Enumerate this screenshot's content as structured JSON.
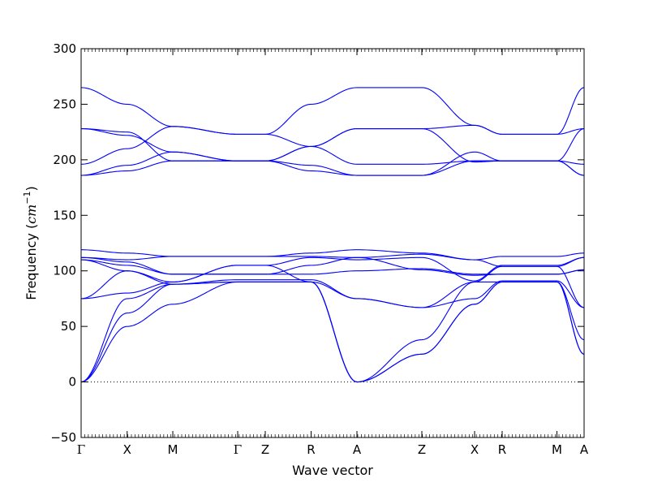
{
  "chart_data": {
    "type": "line",
    "xlabel": "Wave vector",
    "ylabel_text": "Frequency (",
    "ylabel_unit": "cm",
    "ylabel_exponent": "−1",
    "ylabel_close": ")",
    "ylim": [
      -50,
      300
    ],
    "yticks": [
      -50,
      0,
      50,
      100,
      150,
      200,
      250,
      300
    ],
    "ytick_labels": [
      "−50",
      "0",
      "50",
      "100",
      "150",
      "200",
      "250",
      "300"
    ],
    "xlim": [
      0,
      1
    ],
    "xticks": [
      {
        "label": "Γ",
        "x": 0.0
      },
      {
        "label": "X",
        "x": 0.0915
      },
      {
        "label": "M",
        "x": 0.1823
      },
      {
        "label": "Γ",
        "x": 0.3113
      },
      {
        "label": "Z",
        "x": 0.3661
      },
      {
        "label": "R",
        "x": 0.4573
      },
      {
        "label": "A",
        "x": 0.5484
      },
      {
        "label": "Z",
        "x": 0.6774
      },
      {
        "label": "X",
        "x": 0.7823
      },
      {
        "label": "R",
        "x": 0.8371
      },
      {
        "label": "M",
        "x": 0.946
      },
      {
        "label": "A",
        "x": 1.0
      }
    ],
    "zero_line": true,
    "line_color": "#0000ff",
    "series": [
      {
        "values": [
          0,
          62,
          88,
          90,
          90,
          90,
          0,
          25,
          70,
          90,
          90,
          25,
          85,
          90,
          90,
          90
        ]
      },
      {
        "values": [
          0,
          50,
          70,
          90,
          90,
          90,
          0,
          25,
          70,
          90,
          90,
          25,
          70,
          70,
          90,
          90
        ]
      },
      {
        "values": [
          0,
          75,
          88,
          90,
          90,
          90,
          0,
          38,
          90,
          90,
          90,
          38,
          88,
          90,
          90,
          90
        ]
      },
      {
        "values": [
          75,
          80,
          90,
          105,
          105,
          90,
          75,
          67,
          90,
          104,
          104,
          67,
          90,
          92,
          104,
          104
        ]
      },
      {
        "values": [
          75,
          100,
          88,
          92,
          92,
          92,
          75,
          67,
          75,
          91,
          91,
          67,
          88,
          90,
          91,
          91
        ]
      },
      {
        "values": [
          110,
          100,
          90,
          105,
          105,
          112,
          110,
          112,
          91,
          105,
          105,
          112,
          90,
          92,
          97,
          97
        ]
      },
      {
        "values": [
          110,
          105,
          97,
          97,
          97,
          97,
          100,
          102,
          97,
          97,
          97,
          101,
          97,
          97,
          97,
          97
        ]
      },
      {
        "values": [
          112,
          108,
          97,
          97,
          97,
          105,
          112,
          101,
          96,
          97,
          97,
          101,
          97,
          97,
          97,
          97
        ]
      },
      {
        "values": [
          112,
          110,
          113,
          113,
          113,
          113,
          112,
          115,
          110,
          104,
          104,
          112,
          113,
          110,
          113,
          113
        ]
      },
      {
        "values": [
          119,
          116,
          113,
          113,
          113,
          116,
          119,
          116,
          110,
          113,
          113,
          116,
          113,
          110,
          113,
          113
        ]
      },
      {
        "values": [
          186,
          190,
          199,
          199,
          199,
          190,
          186,
          186,
          199,
          199,
          199,
          186,
          198,
          198,
          198,
          198
        ]
      },
      {
        "values": [
          186,
          195,
          207,
          199,
          199,
          195,
          186,
          186,
          207,
          199,
          199,
          186,
          207,
          207,
          198,
          198
        ]
      },
      {
        "values": [
          196,
          210,
          230,
          223,
          223,
          212,
          228,
          228,
          231,
          223,
          223,
          228,
          230,
          231,
          223,
          223
        ]
      },
      {
        "values": [
          228,
          222,
          207,
          199,
          199,
          212,
          196,
          196,
          199,
          199,
          199,
          196,
          198,
          198,
          198,
          198
        ]
      },
      {
        "values": [
          228,
          225,
          199,
          199,
          199,
          212,
          228,
          228,
          198,
          199,
          199,
          228,
          198,
          198,
          198,
          198
        ]
      },
      {
        "values": [
          265,
          250,
          230,
          223,
          223,
          250,
          265,
          265,
          231,
          223,
          223,
          265,
          230,
          231,
          223,
          223
        ]
      }
    ]
  }
}
